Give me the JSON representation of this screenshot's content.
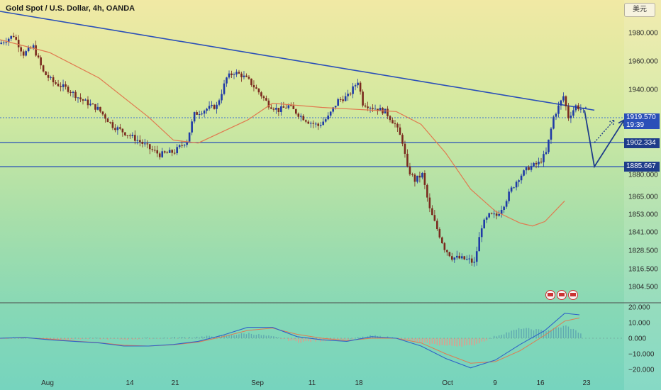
{
  "header": {
    "title": "Gold Spot / U.S. Dollar, 4h, OANDA",
    "currency_button": "美元"
  },
  "price_tags": {
    "last_price": "1919.570",
    "countdown": "19:39",
    "level_upper": "1902.334",
    "level_lower": "1885.667"
  },
  "colors": {
    "bull_candle": "#1f3aa6",
    "bear_candle": "#7a2a1e",
    "trendline": "#2a4fb8",
    "ma_line": "#e07a50",
    "macd_line": "#2f64c8",
    "signal_line": "#e07a50",
    "hist_pos": "#5fa9b0",
    "hist_neg": "#e39a8a"
  },
  "chart_data": [
    {
      "type": "candlestick",
      "title": "Gold Spot / U.S. Dollar, 4h, OANDA",
      "y_axis": {
        "position": "right",
        "ticks": [
          1980.0,
          1960.0,
          1940.0,
          1919.57,
          1902.334,
          1885.667,
          1880.0,
          1865.0,
          1853.0,
          1841.0,
          1828.5,
          1816.5,
          1804.5
        ],
        "tick_labels": [
          "1980.000",
          "1960.000",
          "1940.000",
          "1919.570",
          "1902.334",
          "1885.667",
          "1880.000",
          "1865.000",
          "1853.000",
          "1841.000",
          "1828.500",
          "1816.500",
          "1804.500"
        ]
      },
      "x_axis": {
        "tick_labels": [
          "Aug",
          "14",
          "21",
          "Sep",
          "11",
          "18",
          "Oct",
          "9",
          "16",
          "23"
        ]
      },
      "price_path": [
        [
          0,
          1972
        ],
        [
          6,
          1978
        ],
        [
          10,
          1965
        ],
        [
          14,
          1970
        ],
        [
          18,
          1952
        ],
        [
          22,
          1945
        ],
        [
          28,
          1940
        ],
        [
          33,
          1933
        ],
        [
          40,
          1926
        ],
        [
          46,
          1914
        ],
        [
          52,
          1908
        ],
        [
          57,
          1903
        ],
        [
          61,
          1898
        ],
        [
          65,
          1894
        ],
        [
          71,
          1896
        ],
        [
          76,
          1904
        ],
        [
          79,
          1922
        ],
        [
          84,
          1926
        ],
        [
          88,
          1928
        ],
        [
          92,
          1948
        ],
        [
          95,
          1952
        ],
        [
          98,
          1950
        ],
        [
          101,
          1946
        ],
        [
          105,
          1938
        ],
        [
          109,
          1929
        ],
        [
          113,
          1925
        ],
        [
          117,
          1928
        ],
        [
          121,
          1922
        ],
        [
          125,
          1917
        ],
        [
          129,
          1914
        ],
        [
          133,
          1920
        ],
        [
          137,
          1932
        ],
        [
          141,
          1935
        ],
        [
          145,
          1946
        ],
        [
          147,
          1930
        ],
        [
          151,
          1927
        ],
        [
          156,
          1924
        ],
        [
          160,
          1915
        ],
        [
          163,
          1903
        ],
        [
          165,
          1884
        ],
        [
          168,
          1876
        ],
        [
          171,
          1880
        ],
        [
          174,
          1856
        ],
        [
          177,
          1843
        ],
        [
          180,
          1830
        ],
        [
          183,
          1824
        ],
        [
          187,
          1823
        ],
        [
          190,
          1822
        ],
        [
          192,
          1820
        ],
        [
          195,
          1845
        ],
        [
          198,
          1852
        ],
        [
          201,
          1852
        ],
        [
          204,
          1860
        ],
        [
          207,
          1870
        ],
        [
          210,
          1878
        ],
        [
          214,
          1885
        ],
        [
          218,
          1888
        ],
        [
          221,
          1895
        ],
        [
          224,
          1920
        ],
        [
          228,
          1935
        ],
        [
          230,
          1920
        ],
        [
          233,
          1928
        ],
        [
          236,
          1925
        ]
      ],
      "moving_average": [
        [
          0,
          1975
        ],
        [
          20,
          1966
        ],
        [
          40,
          1948
        ],
        [
          60,
          1920
        ],
        [
          70,
          1904
        ],
        [
          80,
          1902
        ],
        [
          100,
          1918
        ],
        [
          110,
          1930
        ],
        [
          130,
          1927
        ],
        [
          150,
          1925
        ],
        [
          160,
          1924
        ],
        [
          170,
          1915
        ],
        [
          180,
          1895
        ],
        [
          190,
          1870
        ],
        [
          200,
          1855
        ],
        [
          210,
          1847
        ],
        [
          215,
          1845
        ],
        [
          220,
          1848
        ],
        [
          228,
          1862
        ]
      ],
      "trendline": {
        "start": [
          0,
          1995
        ],
        "end": [
          240,
          1925
        ]
      },
      "horizontal_levels": [
        1919.57,
        1902.334,
        1885.667
      ],
      "projection": {
        "solid": [
          [
            236,
            1925
          ],
          [
            240,
            1885.667
          ],
          [
            252,
            1918
          ]
        ],
        "dotted": [
          [
            240,
            1902.334
          ],
          [
            248,
            1918
          ]
        ]
      }
    },
    {
      "type": "macd",
      "y_axis": {
        "ticks": [
          20.0,
          10.0,
          0.0,
          -10.0,
          -20.0
        ],
        "tick_labels": [
          "20.000",
          "10.000",
          "0.000",
          "−10.000",
          "−20.000"
        ]
      },
      "macd": [
        [
          0,
          0
        ],
        [
          10,
          0.5
        ],
        [
          20,
          -1
        ],
        [
          30,
          -2
        ],
        [
          40,
          -3
        ],
        [
          50,
          -5
        ],
        [
          60,
          -5
        ],
        [
          70,
          -4
        ],
        [
          80,
          -2
        ],
        [
          90,
          2
        ],
        [
          100,
          7
        ],
        [
          110,
          7
        ],
        [
          120,
          1
        ],
        [
          130,
          -1
        ],
        [
          140,
          -2
        ],
        [
          150,
          1
        ],
        [
          160,
          0
        ],
        [
          170,
          -5
        ],
        [
          180,
          -13
        ],
        [
          190,
          -19
        ],
        [
          200,
          -14
        ],
        [
          210,
          -4
        ],
        [
          220,
          5
        ],
        [
          228,
          16
        ],
        [
          234,
          15
        ]
      ],
      "signal": [
        [
          0,
          0
        ],
        [
          10,
          0.3
        ],
        [
          20,
          -0.5
        ],
        [
          30,
          -1.8
        ],
        [
          40,
          -2.8
        ],
        [
          50,
          -4.5
        ],
        [
          60,
          -5
        ],
        [
          70,
          -4.2
        ],
        [
          80,
          -2.5
        ],
        [
          90,
          1
        ],
        [
          100,
          5
        ],
        [
          110,
          6.5
        ],
        [
          120,
          2.5
        ],
        [
          130,
          0
        ],
        [
          140,
          -1.5
        ],
        [
          150,
          0
        ],
        [
          160,
          0
        ],
        [
          170,
          -3
        ],
        [
          180,
          -10
        ],
        [
          190,
          -16
        ],
        [
          200,
          -15
        ],
        [
          210,
          -8
        ],
        [
          220,
          2
        ],
        [
          228,
          11
        ],
        [
          234,
          13
        ]
      ]
    }
  ]
}
